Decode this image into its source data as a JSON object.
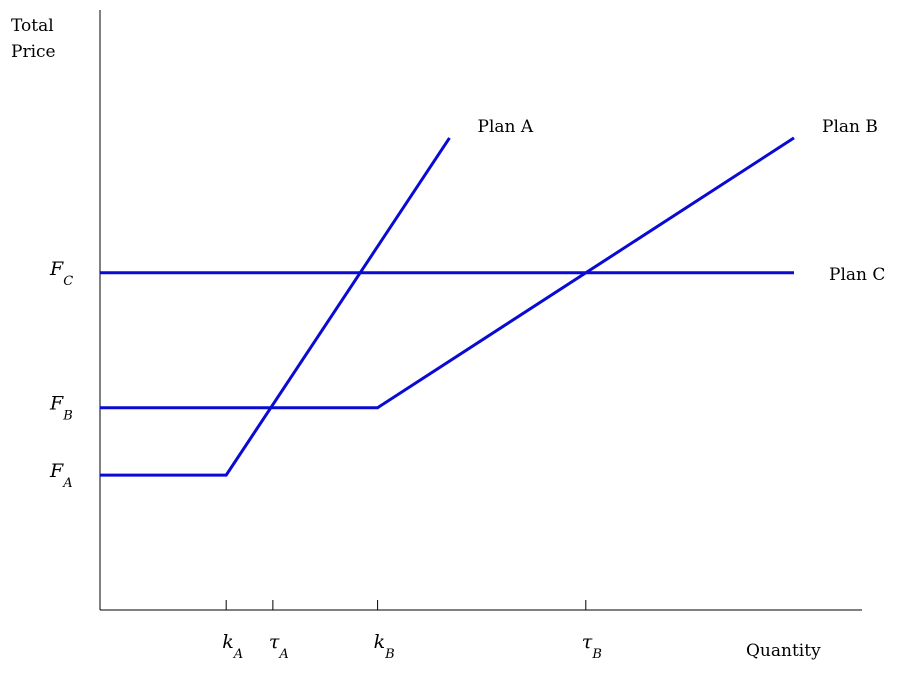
{
  "chart_data": {
    "type": "line",
    "y_axis_label": [
      "Total",
      "Price"
    ],
    "x_axis_label": "Quantity",
    "line_color": "#0a0ad2",
    "y_ticks": [
      {
        "main": "F",
        "sub": "A",
        "value": 1
      },
      {
        "main": "F",
        "sub": "B",
        "value": 1.5
      },
      {
        "main": "F",
        "sub": "C",
        "value": 2.5
      }
    ],
    "x_ticks": [
      {
        "main": "k",
        "sub": "A",
        "value": 1
      },
      {
        "main": "τ",
        "sub": "A",
        "value": 1.37
      },
      {
        "main": "k",
        "sub": "B",
        "value": 2.2
      },
      {
        "main": "τ",
        "sub": "B",
        "value": 3.85
      }
    ],
    "xlim": [
      0,
      5.5
    ],
    "ylim": [
      0,
      3.9
    ],
    "series": [
      {
        "name": "Plan A",
        "points": [
          [
            0,
            1
          ],
          [
            1,
            1
          ],
          [
            2.77,
            3.5
          ]
        ]
      },
      {
        "name": "Plan B",
        "points": [
          [
            0,
            1.5
          ],
          [
            2.2,
            1.5
          ],
          [
            5.5,
            3.5
          ]
        ]
      },
      {
        "name": "Plan C",
        "points": [
          [
            0,
            2.5
          ],
          [
            5.5,
            2.5
          ]
        ]
      }
    ]
  }
}
